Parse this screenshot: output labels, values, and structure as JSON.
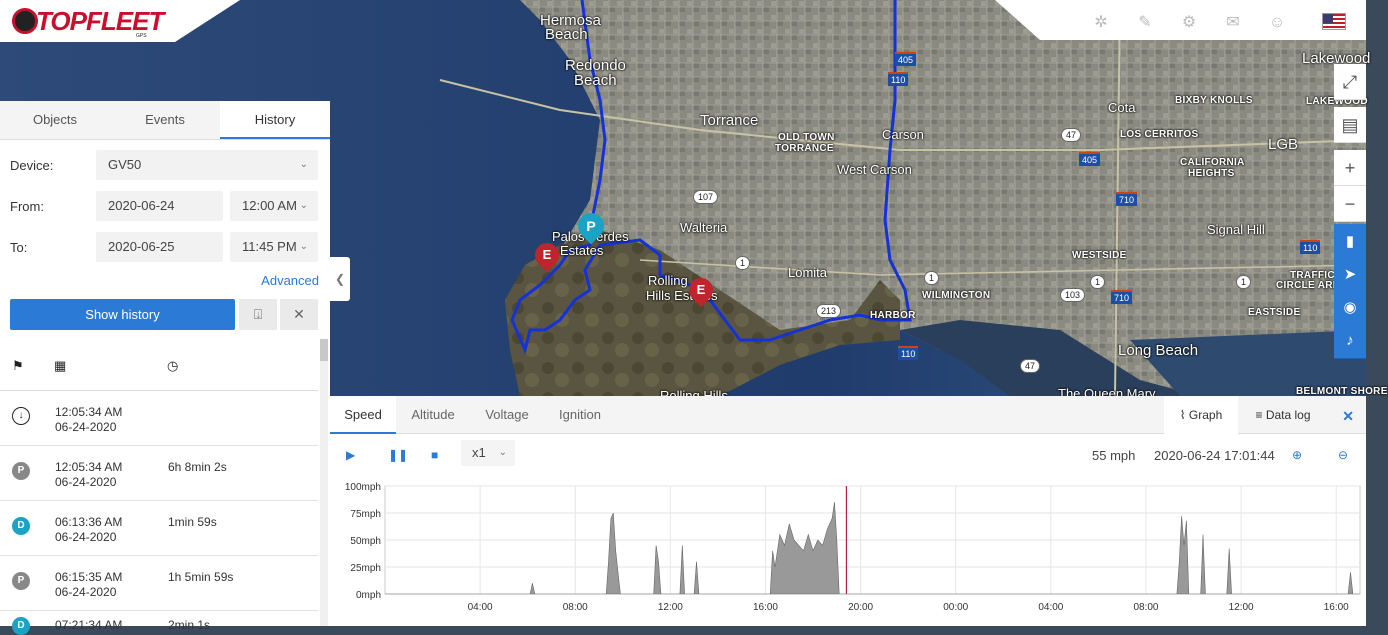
{
  "app": {
    "logo_text": "TOPFLEET",
    "logo_sub": "GPS"
  },
  "topbar": {
    "icons": [
      "share-icon",
      "wrench-icon",
      "gear-icon",
      "chat-icon",
      "user-icon"
    ],
    "flag": "us-flag-icon"
  },
  "map": {
    "labels": [
      {
        "t": "Hermosa",
        "c": "big"
      },
      {
        "t": "Beach",
        "c": "big"
      },
      {
        "t": "Redondo",
        "c": "big"
      },
      {
        "t": "Beach",
        "c": "big"
      },
      {
        "t": "Torrance",
        "c": "big"
      },
      {
        "t": "OLD TOWN",
        "c": "small"
      },
      {
        "t": "TORRANCE",
        "c": "small"
      },
      {
        "t": "Carson",
        "c": ""
      },
      {
        "t": "West Carson",
        "c": ""
      },
      {
        "t": "Walteria",
        "c": ""
      },
      {
        "t": "Palos Verdes",
        "c": ""
      },
      {
        "t": "Estates",
        "c": ""
      },
      {
        "t": "Rolling",
        "c": ""
      },
      {
        "t": "Hills Estates",
        "c": ""
      },
      {
        "t": "Lomita",
        "c": ""
      },
      {
        "t": "HARBOR",
        "c": "small"
      },
      {
        "t": "WILMINGTON",
        "c": "small"
      },
      {
        "t": "Rolling Hills",
        "c": ""
      },
      {
        "t": "Lakewood",
        "c": "big"
      },
      {
        "t": "LAKEWOOD",
        "c": "small"
      },
      {
        "t": "Cota",
        "c": ""
      },
      {
        "t": "BIXBY KNOLLS",
        "c": "small"
      },
      {
        "t": "LOS CERRITOS",
        "c": "small"
      },
      {
        "t": "LGB",
        "c": "big"
      },
      {
        "t": "CALIFORNIA",
        "c": "small"
      },
      {
        "t": "HEIGHTS",
        "c": "small"
      },
      {
        "t": "Signal Hill",
        "c": ""
      },
      {
        "t": "WESTSIDE",
        "c": "small"
      },
      {
        "t": "TRAFFIC",
        "c": "small"
      },
      {
        "t": "CIRCLE AREA",
        "c": "small"
      },
      {
        "t": "EASTSIDE",
        "c": "small"
      },
      {
        "t": "Long Beach",
        "c": "big"
      },
      {
        "t": "The Queen Mary",
        "c": ""
      },
      {
        "t": "BELMONT SHORE",
        "c": "small"
      }
    ],
    "shields": [
      "107",
      "1",
      "1",
      "1",
      "1",
      "213",
      "103",
      "47",
      "47"
    ],
    "interstates": [
      "405",
      "405",
      "110",
      "110",
      "110",
      "710",
      "710"
    ],
    "markers": [
      {
        "t": "P"
      },
      {
        "t": "E"
      },
      {
        "t": "E"
      }
    ]
  },
  "map_controls": [
    "fullscreen-icon",
    "layers-icon",
    "zoom-in-icon",
    "zoom-out-icon",
    "device-icon",
    "navigate-icon",
    "compass-icon",
    "bell-icon"
  ],
  "panel": {
    "tabs": [
      "Objects",
      "Events",
      "History"
    ],
    "active_tab": 2,
    "device_label": "Device:",
    "device_value": "GV50",
    "from_label": "From:",
    "from_date": "2020-06-24",
    "from_time": "12:00 AM",
    "to_label": "To:",
    "to_date": "2020-06-25",
    "to_time": "11:45 PM",
    "advanced": "Advanced",
    "show_history": "Show history"
  },
  "history": {
    "rows": [
      {
        "badge": "↓",
        "kind": "start",
        "time": "12:05:34 AM",
        "date": "06-24-2020",
        "duration": ""
      },
      {
        "badge": "P",
        "kind": "parking",
        "time": "12:05:34 AM",
        "date": "06-24-2020",
        "duration": "6h 8min 2s"
      },
      {
        "badge": "D",
        "kind": "drive",
        "time": "06:13:36 AM",
        "date": "06-24-2020",
        "duration": "1min 59s"
      },
      {
        "badge": "P",
        "kind": "parking",
        "time": "06:15:35 AM",
        "date": "06-24-2020",
        "duration": "1h 5min 59s"
      },
      {
        "badge": "D",
        "kind": "drive",
        "time": "07:21:34 AM",
        "date": "",
        "duration": "2min 1s"
      }
    ]
  },
  "graph": {
    "tabs": [
      "Speed",
      "Altitude",
      "Voltage",
      "Ignition"
    ],
    "active_tab": 0,
    "graph_btn": "Graph",
    "datalog_btn": "Data log",
    "speed_multiplier": "x1",
    "current_speed": "55 mph",
    "current_time": "2020-06-24 17:01:44"
  },
  "chart_data": {
    "type": "area",
    "ylabel": "",
    "yticks": [
      "100mph",
      "75mph",
      "50mph",
      "25mph",
      "0mph"
    ],
    "ylim": [
      0,
      100
    ],
    "xticks": [
      "04:00",
      "08:00",
      "12:00",
      "16:00",
      "20:00",
      "00:00",
      "04:00",
      "08:00",
      "12:00",
      "16:00"
    ],
    "xlim": [
      0,
      41
    ],
    "cursor_hour": 19.4,
    "x": [
      0,
      6.1,
      6.2,
      6.3,
      9.3,
      9.4,
      9.5,
      9.6,
      9.7,
      9.8,
      9.9,
      11.3,
      11.4,
      11.5,
      11.6,
      12.4,
      12.5,
      12.6,
      13.0,
      13.1,
      13.2,
      16.2,
      16.3,
      16.4,
      16.6,
      16.8,
      17.0,
      17.2,
      17.4,
      17.6,
      17.8,
      18.0,
      18.2,
      18.4,
      18.6,
      18.8,
      18.9,
      19.0,
      19.1,
      33.3,
      33.4,
      33.5,
      33.6,
      33.7,
      33.8,
      34.3,
      34.4,
      34.5,
      35.4,
      35.5,
      35.6,
      40.5,
      40.6,
      40.7,
      41
    ],
    "y": [
      0,
      0,
      10,
      0,
      0,
      30,
      70,
      75,
      40,
      20,
      0,
      0,
      45,
      30,
      0,
      0,
      45,
      0,
      0,
      30,
      0,
      0,
      40,
      25,
      55,
      45,
      65,
      50,
      45,
      40,
      55,
      40,
      50,
      45,
      60,
      70,
      85,
      50,
      0,
      0,
      30,
      72,
      45,
      68,
      0,
      0,
      55,
      0,
      0,
      42,
      0,
      0,
      20,
      0,
      0
    ]
  }
}
